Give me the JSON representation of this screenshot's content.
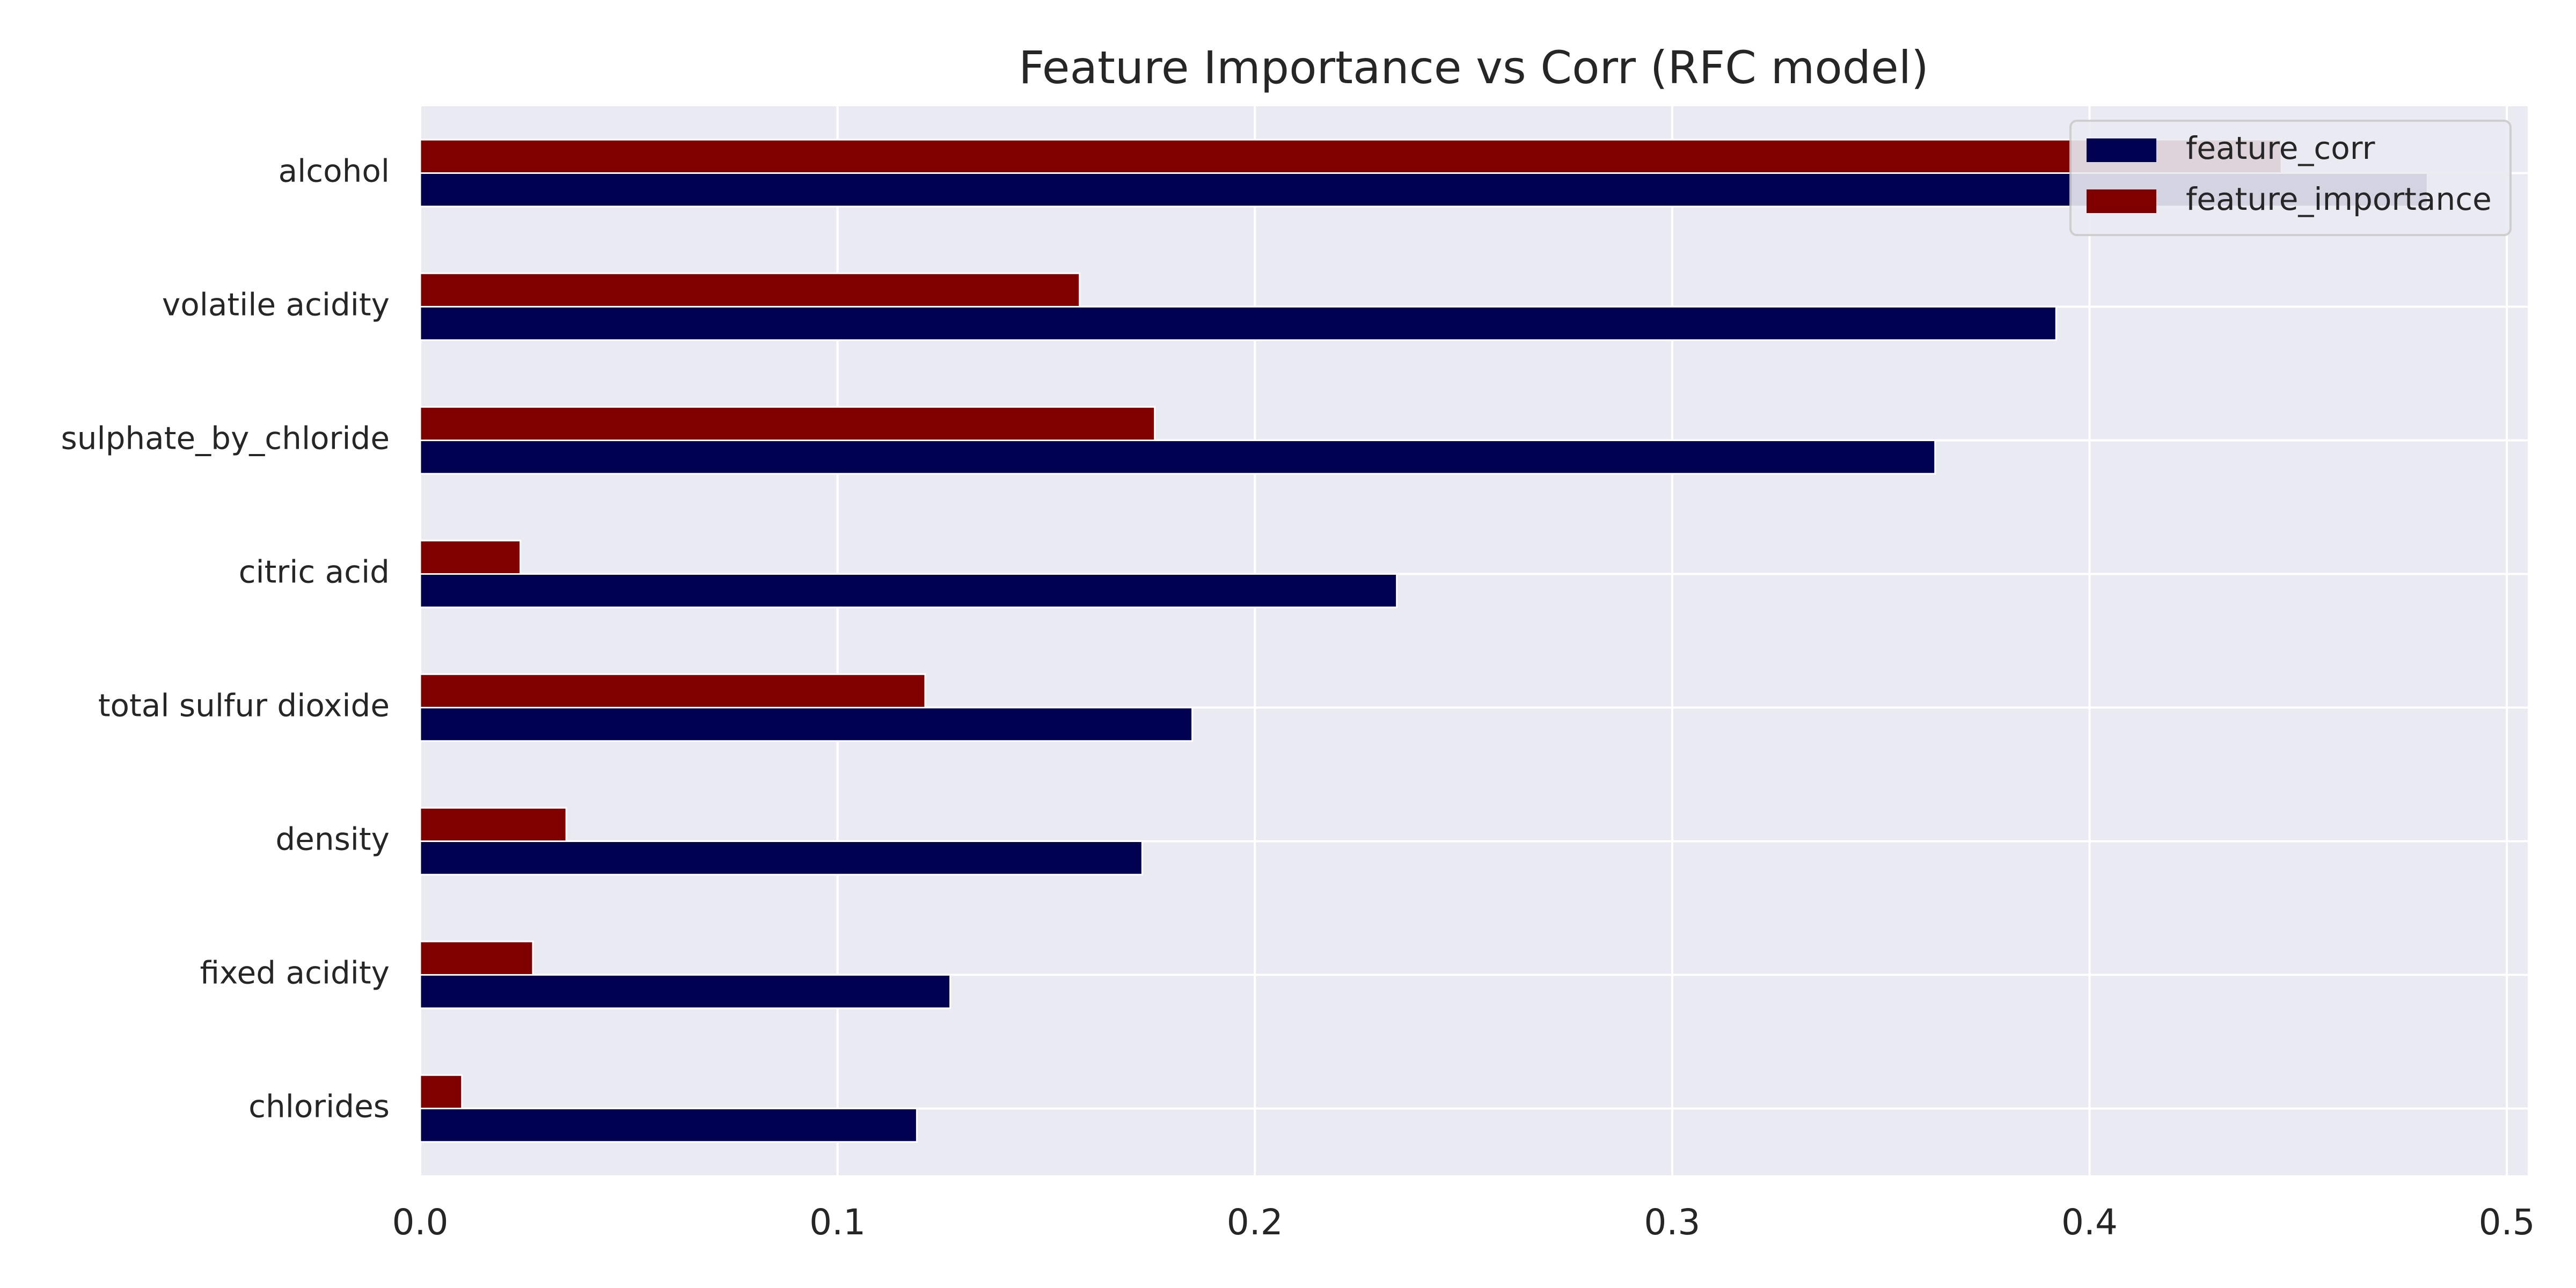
{
  "chart_data": {
    "type": "bar",
    "orientation": "horizontal",
    "title": "Feature Importance vs Corr (RFC model)",
    "xlabel": "",
    "ylabel": "",
    "xlim": [
      0,
      0.505
    ],
    "xticks": [
      0.0,
      0.1,
      0.2,
      0.3,
      0.4,
      0.5
    ],
    "xtick_labels": [
      "0.0",
      "0.1",
      "0.2",
      "0.3",
      "0.4",
      "0.5"
    ],
    "categories": [
      "chlorides",
      "fixed acidity",
      "density",
      "total sulfur dioxide",
      "citric acid",
      "sulphate_by_chloride",
      "volatile acidity",
      "alcohol"
    ],
    "series": [
      {
        "name": "feature_corr",
        "color": "#000050",
        "values": [
          0.119,
          0.127,
          0.173,
          0.185,
          0.234,
          0.363,
          0.392,
          0.481
        ]
      },
      {
        "name": "feature_importance",
        "color": "#800000",
        "values": [
          0.01,
          0.027,
          0.035,
          0.121,
          0.024,
          0.176,
          0.158,
          0.446
        ]
      }
    ],
    "grid": true,
    "background": "#eaeaf2",
    "legend": {
      "position": "top-right"
    }
  }
}
